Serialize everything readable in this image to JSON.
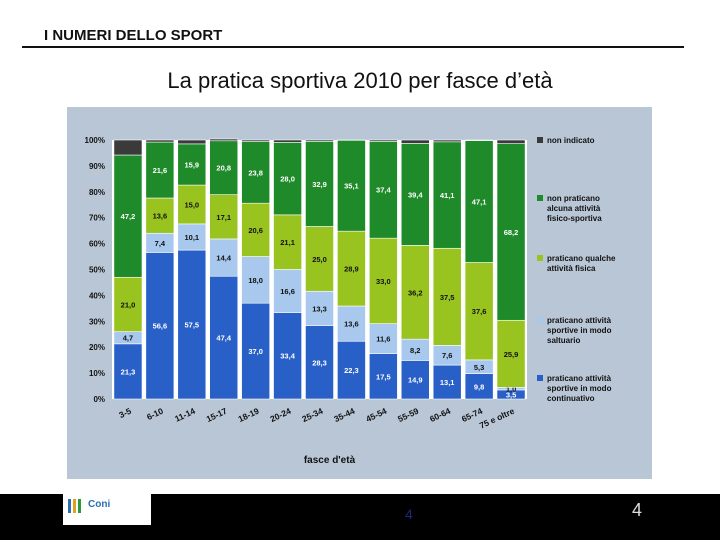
{
  "header": {
    "section_title": "I NUMERI DELLO SPORT"
  },
  "slide": {
    "title": "La pratica sportiva 2010 per fasce d’età"
  },
  "chart_data": {
    "type": "bar",
    "stacked": true,
    "categories": [
      "3-5",
      "6-10",
      "11-14",
      "15-17",
      "18-19",
      "20-24",
      "25-34",
      "35-44",
      "45-54",
      "55-59",
      "60-64",
      "65-74",
      "75 e oltre"
    ],
    "xlabel": "fasce d'età",
    "ylabel": "",
    "ylim": [
      0,
      100
    ],
    "y_ticks": [
      "0%",
      "10%",
      "20%",
      "30%",
      "40%",
      "50%",
      "60%",
      "70%",
      "80%",
      "90%",
      "100%"
    ],
    "series": [
      {
        "name": "praticano attività sportive in modo continuativo",
        "color": "#2860c8",
        "values": [
          21.3,
          56.6,
          57.5,
          47.4,
          37.0,
          33.4,
          28.3,
          22.3,
          17.5,
          14.9,
          13.1,
          9.8,
          3.5
        ]
      },
      {
        "name": "praticano attività sportive in modo saltuario",
        "color": "#a8c8ee",
        "values": [
          4.7,
          7.4,
          10.1,
          14.4,
          18.0,
          16.6,
          13.3,
          13.6,
          11.6,
          8.2,
          7.6,
          5.3,
          1.0
        ]
      },
      {
        "name": "praticano qualche attività fisica",
        "color": "#99c31f",
        "values": [
          21.0,
          13.6,
          15.0,
          17.1,
          20.6,
          21.1,
          25.0,
          28.9,
          33.0,
          36.2,
          37.5,
          37.6,
          25.9
        ]
      },
      {
        "name": "non praticano alcuna attività fisico-sportiva",
        "color": "#1f8a2a",
        "values": [
          47.2,
          21.6,
          15.9,
          20.8,
          23.8,
          28.0,
          32.9,
          35.1,
          37.4,
          39.4,
          41.1,
          47.1,
          68.2
        ]
      },
      {
        "name": "non indicato",
        "color": "#3a3a3a",
        "values": [
          5.8,
          0.8,
          1.5,
          0.7,
          0.6,
          0.9,
          0.5,
          0.1,
          0.5,
          1.3,
          0.7,
          0.2,
          1.4
        ]
      }
    ],
    "value_labels": [
      [
        "21,3",
        "56,6",
        "57,5",
        "47,4",
        "37,0",
        "33,4",
        "28,3",
        "22,3",
        "17,5",
        "14,9",
        "13,1",
        "9,8",
        "3,5"
      ],
      [
        "4,7",
        "7,4",
        "10,1",
        "14,4",
        "18,0",
        "16,6",
        "13,3",
        "13,6",
        "11,6",
        "8,2",
        "7,6",
        "5,3",
        "1,0"
      ],
      [
        "21,0",
        "13,6",
        "15,0",
        "17,1",
        "20,6",
        "21,1",
        "25,0",
        "28,9",
        "33,0",
        "36,2",
        "37,5",
        "37,6",
        "25,9"
      ],
      [
        "47,2",
        "21,6",
        "15,9",
        "20,8",
        "23,8",
        "28,0",
        "32,9",
        "35,1",
        "37,4",
        "39,4",
        "41,1",
        "47,1",
        "68,2"
      ]
    ],
    "legend": [
      {
        "text": "non indicato",
        "color": "#3a3a3a"
      },
      {
        "text": "non praticano alcuna attività fisico-sportiva",
        "color": "#1f8a2a"
      },
      {
        "text": "praticano qualche attività fisica",
        "color": "#99c31f"
      },
      {
        "text": "praticano attività sportive in modo saltuario",
        "color": "#a8c8ee"
      },
      {
        "text": "praticano attività sportive in modo continuativo",
        "color": "#2860c8"
      }
    ],
    "legend_position": "right"
  },
  "footer": {
    "logo_text": "Coni",
    "page_center": "4",
    "page_right": "4"
  }
}
